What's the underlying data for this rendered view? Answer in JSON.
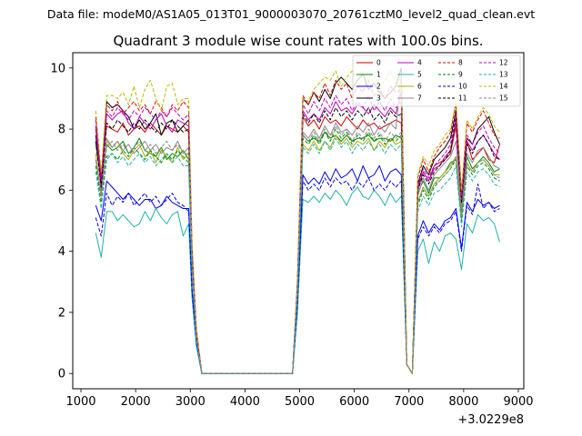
{
  "chart_data": {
    "type": "line",
    "suptitle": "Data file: modeM0/AS1A05_013T01_9000003070_20761cztM0_level2_quad_clean.evt",
    "title": "Quadrant 3 module wise count rates with 100.0s bins.",
    "xlabel": "",
    "ylabel": "",
    "x_offset_text": "+3.0229e8",
    "xlim": [
      850,
      9100
    ],
    "ylim": [
      -0.5,
      10.5
    ],
    "xticks": [
      1000,
      2000,
      3000,
      4000,
      5000,
      6000,
      7000,
      8000,
      9000
    ],
    "yticks": [
      0,
      2,
      4,
      6,
      8,
      10
    ],
    "legend_position": "top-right",
    "legend_columns": 4,
    "x": [
      1270,
      1370,
      1470,
      1570,
      1670,
      1770,
      1870,
      1970,
      2070,
      2170,
      2270,
      2370,
      2470,
      2570,
      2670,
      2770,
      2870,
      2970,
      3030,
      3110,
      3210,
      4870,
      4960,
      5060,
      5160,
      5260,
      5360,
      5460,
      5560,
      5660,
      5760,
      5860,
      5960,
      6060,
      6160,
      6260,
      6360,
      6460,
      6560,
      6660,
      6760,
      6860,
      6960,
      7060,
      7160,
      7260,
      7360,
      7460,
      7560,
      7660,
      7760,
      7860,
      7960,
      8060,
      8160,
      8260,
      8360,
      8460,
      8560,
      8660
    ],
    "series": [
      {
        "name": "0",
        "color": "#cc0000",
        "dash": "solid",
        "values": [
          8.0,
          6.5,
          8.1,
          8.0,
          7.9,
          8.2,
          7.8,
          8.0,
          8.1,
          7.9,
          8.2,
          8.0,
          7.8,
          8.1,
          8.0,
          7.9,
          8.1,
          7.9,
          3.9,
          1.3,
          0.0,
          0.0,
          2.9,
          8.4,
          8.1,
          8.3,
          8.0,
          8.4,
          8.2,
          8.3,
          8.1,
          8.4,
          8.2,
          8.0,
          8.3,
          8.1,
          8.2,
          8.0,
          8.1,
          8.2,
          8.3,
          8.2,
          0.3,
          0.0,
          6.1,
          6.6,
          6.3,
          6.8,
          6.9,
          7.0,
          7.2,
          8.1,
          5.6,
          7.6,
          7.0,
          7.2,
          7.4,
          7.0,
          6.9,
          7.5
        ]
      },
      {
        "name": "1",
        "color": "#008800",
        "dash": "solid",
        "values": [
          7.5,
          6.3,
          7.5,
          7.3,
          7.4,
          7.6,
          7.2,
          7.4,
          7.7,
          7.3,
          7.2,
          7.1,
          7.4,
          7.0,
          7.2,
          7.1,
          7.3,
          7.0,
          3.7,
          1.2,
          0.0,
          0.0,
          2.7,
          7.8,
          7.6,
          7.7,
          7.6,
          7.9,
          7.7,
          7.8,
          7.6,
          7.8,
          7.6,
          7.7,
          7.7,
          7.8,
          7.6,
          7.7,
          7.7,
          7.6,
          7.8,
          7.7,
          0.3,
          0.0,
          5.9,
          6.3,
          5.9,
          6.4,
          6.4,
          6.6,
          6.9,
          7.0,
          5.3,
          7.1,
          6.7,
          6.9,
          7.1,
          6.9,
          6.6,
          6.7
        ]
      },
      {
        "name": "2",
        "color": "#0000ee",
        "dash": "solid",
        "values": [
          5.5,
          5.0,
          6.3,
          6.1,
          5.9,
          5.7,
          5.9,
          5.7,
          5.5,
          5.7,
          5.7,
          5.4,
          5.5,
          5.8,
          5.6,
          5.5,
          5.4,
          5.4,
          2.8,
          1.0,
          0.0,
          0.0,
          2.3,
          6.5,
          6.2,
          6.4,
          6.2,
          6.6,
          6.3,
          6.7,
          6.4,
          6.5,
          6.7,
          6.3,
          6.8,
          6.4,
          6.5,
          6.8,
          6.3,
          6.6,
          6.7,
          6.5,
          0.3,
          0.0,
          4.5,
          5.0,
          4.6,
          4.9,
          4.7,
          5.0,
          5.1,
          5.4,
          4.1,
          5.6,
          5.3,
          5.7,
          5.5,
          5.6,
          5.4,
          5.5
        ]
      },
      {
        "name": "3",
        "color": "#000000",
        "dash": "solid",
        "values": [
          7.8,
          6.2,
          8.9,
          8.7,
          8.8,
          8.6,
          8.4,
          8.0,
          8.3,
          8.0,
          8.2,
          8.5,
          7.8,
          8.2,
          8.3,
          7.9,
          8.1,
          8.3,
          4.1,
          1.4,
          0.0,
          0.0,
          3.0,
          9.0,
          8.8,
          9.2,
          8.9,
          9.3,
          9.0,
          9.5,
          9.7,
          9.5,
          9.3,
          9.6,
          9.8,
          9.3,
          9.5,
          9.2,
          9.0,
          9.2,
          9.4,
          10.0,
          0.3,
          0.0,
          6.2,
          6.8,
          6.5,
          7.0,
          7.2,
          7.4,
          7.7,
          8.6,
          5.8,
          7.7,
          7.5,
          8.0,
          8.2,
          8.4,
          7.9,
          7.5
        ]
      },
      {
        "name": "4",
        "color": "#bb00bb",
        "dash": "solid",
        "values": [
          8.1,
          6.0,
          8.5,
          8.3,
          8.5,
          8.6,
          8.2,
          8.0,
          8.4,
          8.2,
          8.0,
          8.3,
          8.5,
          8.1,
          7.9,
          8.3,
          8.2,
          8.1,
          4.0,
          1.4,
          0.0,
          0.0,
          2.9,
          8.6,
          8.3,
          8.5,
          8.3,
          8.7,
          8.5,
          8.9,
          8.6,
          8.7,
          8.5,
          8.8,
          8.7,
          8.5,
          8.8,
          8.6,
          8.4,
          8.7,
          8.5,
          9.2,
          0.3,
          0.0,
          6.0,
          6.6,
          6.3,
          6.7,
          6.8,
          7.1,
          7.3,
          8.3,
          5.5,
          7.6,
          7.3,
          7.6,
          7.8,
          7.5,
          7.2,
          7.0
        ]
      },
      {
        "name": "5",
        "color": "#20b2aa",
        "dash": "solid",
        "values": [
          4.6,
          3.8,
          5.3,
          5.3,
          5.0,
          5.2,
          5.0,
          4.8,
          4.9,
          5.3,
          5.0,
          5.4,
          5.1,
          4.9,
          5.2,
          5.3,
          4.5,
          4.9,
          2.5,
          0.9,
          0.0,
          0.0,
          2.0,
          5.7,
          5.6,
          5.8,
          5.6,
          5.9,
          5.7,
          6.0,
          5.8,
          5.5,
          5.9,
          6.1,
          5.8,
          5.7,
          6.0,
          5.8,
          5.5,
          5.9,
          5.6,
          5.8,
          0.3,
          0.0,
          4.0,
          4.4,
          3.6,
          4.3,
          4.0,
          4.5,
          4.6,
          4.4,
          3.4,
          4.9,
          4.6,
          5.2,
          5.0,
          5.1,
          4.9,
          4.3
        ]
      },
      {
        "name": "6",
        "color": "#aaaa00",
        "dash": "solid",
        "values": [
          7.2,
          5.8,
          7.6,
          7.4,
          7.6,
          7.2,
          7.0,
          7.3,
          7.5,
          7.1,
          7.3,
          6.9,
          7.3,
          7.1,
          6.9,
          7.4,
          7.0,
          7.2,
          3.6,
          1.2,
          0.0,
          0.0,
          2.7,
          7.5,
          7.3,
          7.6,
          7.3,
          7.6,
          7.4,
          7.8,
          7.5,
          7.7,
          7.4,
          7.6,
          7.5,
          7.7,
          7.3,
          7.6,
          7.4,
          7.7,
          7.5,
          7.6,
          0.3,
          0.0,
          5.6,
          6.1,
          5.8,
          6.2,
          6.4,
          6.6,
          6.8,
          7.1,
          5.1,
          6.9,
          6.6,
          6.9,
          7.0,
          6.8,
          6.5,
          6.5
        ]
      },
      {
        "name": "7",
        "color": "#888888",
        "dash": "solid",
        "values": [
          7.0,
          5.9,
          7.7,
          7.4,
          7.6,
          7.3,
          7.5,
          7.2,
          7.4,
          7.6,
          7.3,
          7.5,
          7.2,
          7.4,
          7.3,
          7.6,
          7.2,
          7.4,
          3.7,
          1.2,
          0.0,
          0.0,
          2.7,
          7.9,
          7.7,
          8.0,
          7.7,
          8.1,
          7.8,
          8.2,
          7.9,
          8.0,
          7.8,
          8.1,
          7.9,
          8.2,
          7.8,
          8.1,
          7.9,
          8.2,
          8.0,
          9.8,
          0.3,
          0.0,
          5.8,
          6.4,
          6.0,
          6.5,
          6.7,
          6.9,
          7.1,
          7.6,
          5.4,
          7.2,
          6.9,
          7.3,
          7.4,
          7.1,
          6.8,
          6.7
        ]
      },
      {
        "name": "8",
        "color": "#ee0000",
        "dash": "dashed",
        "values": [
          8.4,
          6.4,
          8.8,
          8.6,
          8.9,
          8.5,
          8.7,
          8.9,
          8.6,
          8.8,
          8.5,
          8.9,
          8.7,
          8.4,
          8.8,
          8.6,
          8.9,
          8.7,
          4.3,
          1.5,
          0.0,
          0.0,
          3.1,
          9.1,
          8.8,
          9.2,
          9.0,
          9.5,
          9.1,
          9.6,
          9.3,
          9.5,
          9.0,
          9.4,
          9.2,
          9.6,
          9.1,
          9.3,
          9.0,
          9.4,
          9.2,
          9.3,
          0.3,
          0.0,
          6.4,
          7.0,
          6.6,
          7.1,
          7.4,
          7.6,
          7.9,
          8.8,
          5.9,
          8.2,
          7.9,
          8.3,
          8.6,
          8.2,
          7.8,
          7.7
        ]
      },
      {
        "name": "9",
        "color": "#008800",
        "dash": "dashed",
        "values": [
          6.8,
          5.6,
          7.1,
          7.2,
          7.0,
          7.3,
          7.1,
          7.4,
          7.2,
          7.0,
          7.3,
          7.1,
          6.9,
          7.2,
          7.0,
          7.3,
          7.1,
          6.9,
          3.5,
          1.2,
          0.0,
          0.0,
          2.6,
          7.7,
          7.5,
          7.8,
          7.5,
          7.9,
          7.6,
          8.0,
          7.7,
          7.9,
          7.5,
          7.8,
          7.6,
          7.9,
          7.6,
          7.8,
          7.5,
          7.7,
          7.6,
          7.8,
          0.3,
          0.0,
          5.5,
          6.0,
          5.7,
          6.1,
          6.3,
          6.5,
          6.7,
          7.0,
          5.0,
          6.8,
          6.5,
          6.8,
          6.9,
          6.7,
          6.4,
          6.3
        ]
      },
      {
        "name": "10",
        "color": "#0000ee",
        "dash": "dashed",
        "values": [
          5.1,
          4.5,
          5.9,
          5.5,
          5.8,
          5.6,
          5.9,
          5.5,
          5.7,
          5.9,
          5.6,
          5.8,
          5.5,
          5.7,
          5.9,
          5.6,
          5.5,
          5.3,
          2.7,
          1.0,
          0.0,
          0.0,
          2.2,
          6.3,
          6.0,
          6.2,
          6.0,
          6.4,
          6.1,
          6.4,
          6.2,
          6.3,
          6.0,
          6.3,
          6.1,
          6.4,
          6.0,
          6.2,
          6.0,
          6.3,
          6.1,
          6.3,
          0.3,
          0.0,
          4.4,
          4.8,
          4.5,
          4.8,
          4.6,
          4.9,
          5.0,
          5.3,
          4.0,
          5.5,
          5.2,
          6.2,
          5.4,
          5.6,
          5.3,
          5.4
        ]
      },
      {
        "name": "11",
        "color": "#000000",
        "dash": "dashed",
        "values": [
          7.6,
          6.1,
          8.2,
          8.0,
          8.3,
          8.1,
          7.9,
          8.2,
          8.0,
          8.3,
          8.1,
          7.9,
          8.2,
          8.0,
          8.3,
          8.1,
          7.9,
          8.0,
          3.9,
          1.3,
          0.0,
          0.0,
          2.9,
          8.5,
          8.2,
          8.5,
          8.2,
          8.6,
          8.3,
          8.7,
          8.4,
          8.6,
          8.3,
          8.6,
          8.4,
          8.7,
          8.3,
          8.5,
          8.2,
          8.6,
          8.4,
          8.5,
          0.3,
          0.0,
          6.0,
          6.5,
          6.2,
          6.6,
          6.8,
          7.0,
          7.3,
          8.4,
          5.6,
          7.5,
          7.2,
          7.6,
          7.8,
          7.5,
          7.1,
          7.0
        ]
      },
      {
        "name": "12",
        "color": "#bb00bb",
        "dash": "dashed",
        "values": [
          8.3,
          6.3,
          8.6,
          8.4,
          8.7,
          8.5,
          8.3,
          8.6,
          8.4,
          8.7,
          8.5,
          8.3,
          8.6,
          8.4,
          8.7,
          8.5,
          8.3,
          8.5,
          4.1,
          1.4,
          0.0,
          0.0,
          3.0,
          8.8,
          8.5,
          8.9,
          8.6,
          9.0,
          8.7,
          9.1,
          8.8,
          9.0,
          8.6,
          8.9,
          8.7,
          9.1,
          8.6,
          8.9,
          8.6,
          9.0,
          8.7,
          8.9,
          0.3,
          0.0,
          6.1,
          6.7,
          6.4,
          6.8,
          7.0,
          7.2,
          7.5,
          8.5,
          5.7,
          7.8,
          7.5,
          7.9,
          8.1,
          7.7,
          7.4,
          7.2
        ]
      },
      {
        "name": "13",
        "color": "#20b2aa",
        "dash": "dashed",
        "values": [
          6.6,
          5.4,
          7.0,
          7.2,
          6.9,
          7.1,
          6.8,
          7.0,
          7.2,
          6.9,
          7.1,
          6.8,
          7.0,
          7.2,
          6.9,
          7.1,
          6.8,
          6.8,
          3.4,
          1.1,
          0.0,
          0.0,
          2.6,
          7.4,
          7.2,
          7.5,
          7.2,
          7.6,
          7.3,
          7.7,
          7.4,
          7.6,
          7.2,
          7.5,
          7.3,
          7.6,
          7.3,
          7.5,
          7.2,
          7.5,
          7.3,
          7.5,
          0.3,
          0.0,
          5.3,
          5.8,
          5.5,
          5.9,
          6.0,
          6.2,
          6.4,
          6.8,
          4.8,
          6.6,
          6.3,
          6.6,
          6.7,
          6.5,
          6.2,
          6.1
        ]
      },
      {
        "name": "14",
        "color": "#bbbb00",
        "dash": "dashed",
        "values": [
          8.6,
          6.6,
          9.1,
          9.1,
          9.0,
          9.2,
          8.8,
          9.4,
          8.7,
          9.3,
          9.6,
          9.0,
          8.6,
          9.4,
          9.5,
          8.8,
          9.0,
          9.0,
          4.4,
          1.5,
          0.0,
          0.0,
          3.2,
          9.0,
          8.9,
          9.3,
          9.5,
          9.7,
          9.6,
          9.9,
          9.4,
          9.7,
          9.9,
          9.5,
          9.3,
          9.7,
          9.8,
          9.4,
          9.6,
          9.9,
          9.5,
          9.7,
          0.3,
          0.0,
          6.5,
          7.1,
          6.8,
          7.3,
          7.5,
          7.8,
          8.0,
          8.9,
          6.0,
          8.3,
          8.0,
          8.4,
          8.7,
          8.5,
          8.1,
          7.9
        ]
      },
      {
        "name": "15",
        "color": "#888888",
        "dash": "dashed",
        "values": [
          7.0,
          5.7,
          7.4,
          7.6,
          7.3,
          7.5,
          7.2,
          7.4,
          7.6,
          7.3,
          7.5,
          7.2,
          7.4,
          7.6,
          7.3,
          7.5,
          7.2,
          7.2,
          3.6,
          1.2,
          0.0,
          0.0,
          2.7,
          7.8,
          7.6,
          7.9,
          7.6,
          8.0,
          7.7,
          8.1,
          7.8,
          8.0,
          7.6,
          7.9,
          7.7,
          8.0,
          7.7,
          7.9,
          7.6,
          7.9,
          7.7,
          7.9,
          0.3,
          0.0,
          5.6,
          6.1,
          5.8,
          6.2,
          6.3,
          6.5,
          6.7,
          7.1,
          5.1,
          6.9,
          6.6,
          6.9,
          7.0,
          6.8,
          6.5,
          6.4
        ]
      }
    ]
  }
}
